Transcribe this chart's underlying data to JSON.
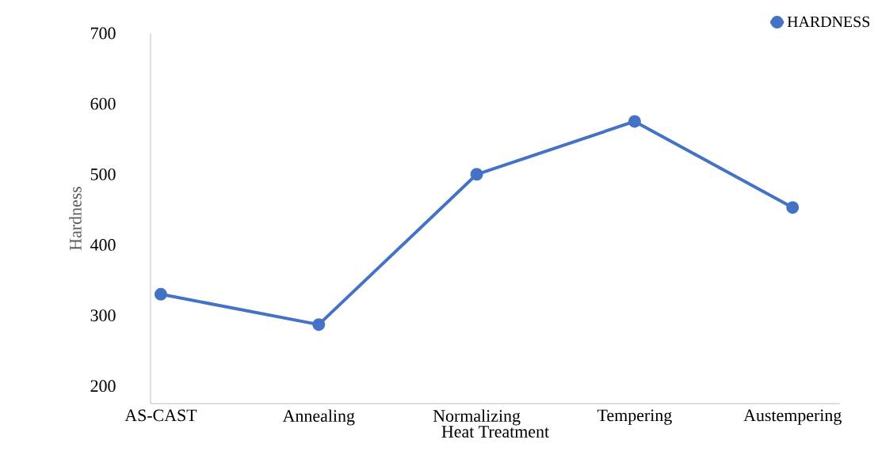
{
  "chart_data": {
    "type": "line",
    "xlabel": "Heat Treatment",
    "ylabel": "Hardness",
    "categories": [
      "AS-CAST",
      "Annealing",
      "Normalizing",
      "Tempering",
      "Austempering"
    ],
    "series": [
      {
        "name": "HARDNESS",
        "color": "#4472c4",
        "values": [
          330,
          287,
          500,
          575,
          453
        ]
      }
    ],
    "ylim": [
      175,
      700
    ],
    "yticks": [
      200,
      300,
      400,
      500,
      600,
      700
    ],
    "grid": false,
    "legend": "top right",
    "marker": "circle",
    "line_style": "solid"
  }
}
